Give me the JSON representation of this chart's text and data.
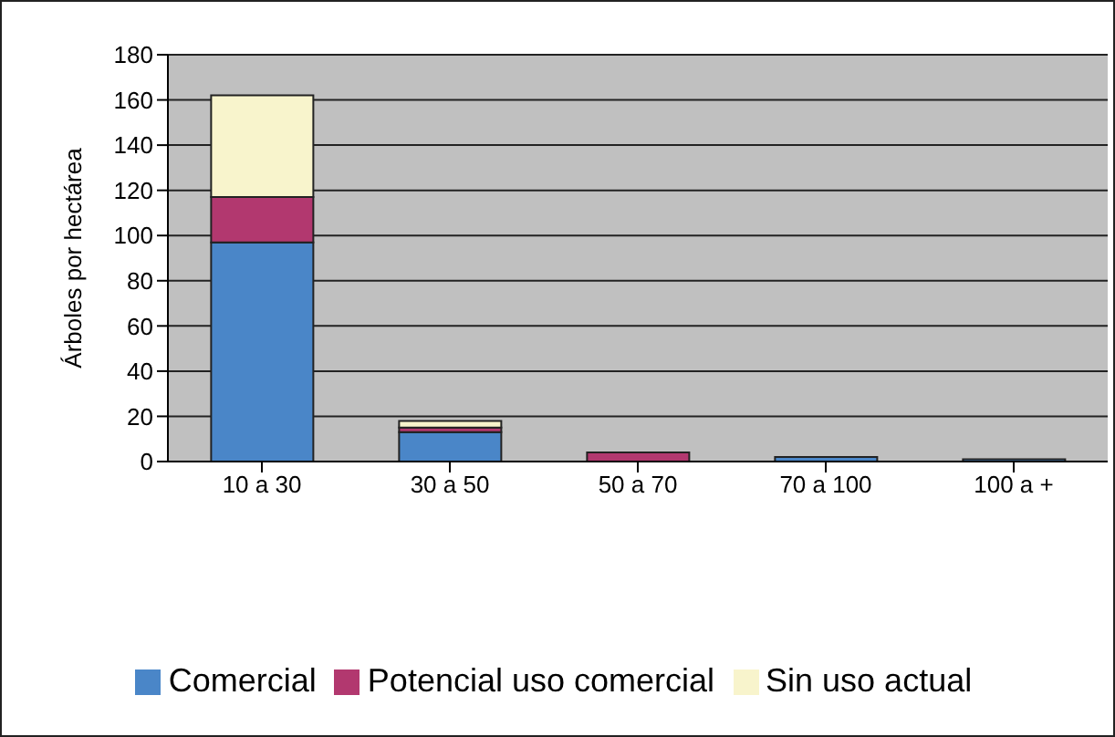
{
  "chart_data": {
    "type": "bar",
    "ylabel": "Árboles por hectárea",
    "categories": [
      "10 a 30",
      "30 a 50",
      "50 a 70",
      "70 a 100",
      "100 a +"
    ],
    "stacked": true,
    "series": [
      {
        "name": "Comercial",
        "color": "#4a86c8",
        "values": [
          97,
          13,
          null,
          2,
          1
        ]
      },
      {
        "name": "Potencial uso comercial",
        "color": "#b2386f",
        "values": [
          20,
          2,
          4,
          null,
          null
        ]
      },
      {
        "name": "Sin uso actual",
        "color": "#f8f4cc",
        "values": [
          45,
          3,
          null,
          null,
          null
        ]
      }
    ],
    "ylim": [
      0,
      180
    ],
    "yticks": [
      0,
      20,
      40,
      60,
      80,
      100,
      120,
      140,
      160,
      180
    ],
    "grid": "y",
    "legend": "bottom"
  }
}
